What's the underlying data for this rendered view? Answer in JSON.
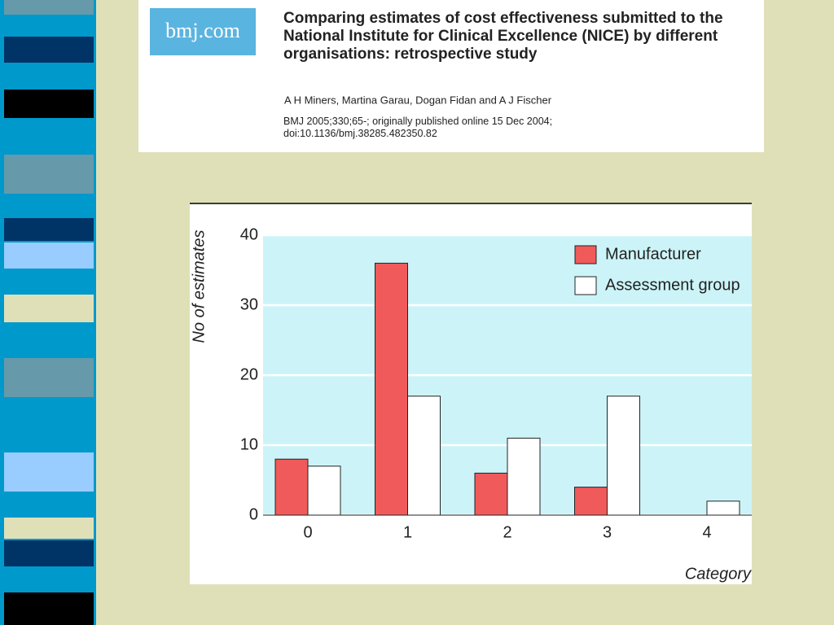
{
  "header": {
    "logo": "bmj.com",
    "title": "Comparing estimates of cost effectiveness submitted to the National Institute for Clinical Excellence (NICE) by different organisations: retrospective study",
    "authors": "A H Miners, Martina Garau, Dogan Fidan and A J Fischer",
    "citation": "BMJ 2005;330;65-; originally published online 15 Dec 2004; doi:10.1136/bmj.38285.482350.82"
  },
  "chart_data": {
    "type": "bar",
    "y_label": "No of estimates",
    "x_label": "Category",
    "categories": [
      "0",
      "1",
      "2",
      "3",
      "4"
    ],
    "series": [
      {
        "name": "Manufacturer",
        "color": "#f05a5a",
        "values": [
          8,
          36,
          6,
          4,
          null
        ]
      },
      {
        "name": "Assessment group",
        "color": "#ffffff",
        "values": [
          7,
          17,
          11,
          17,
          2
        ]
      }
    ],
    "ylim": [
      0,
      40
    ],
    "yticks": [
      0,
      10,
      20,
      30,
      40
    ],
    "grid": true,
    "legend": "top-right",
    "plot_background": "#ccf4f8"
  }
}
